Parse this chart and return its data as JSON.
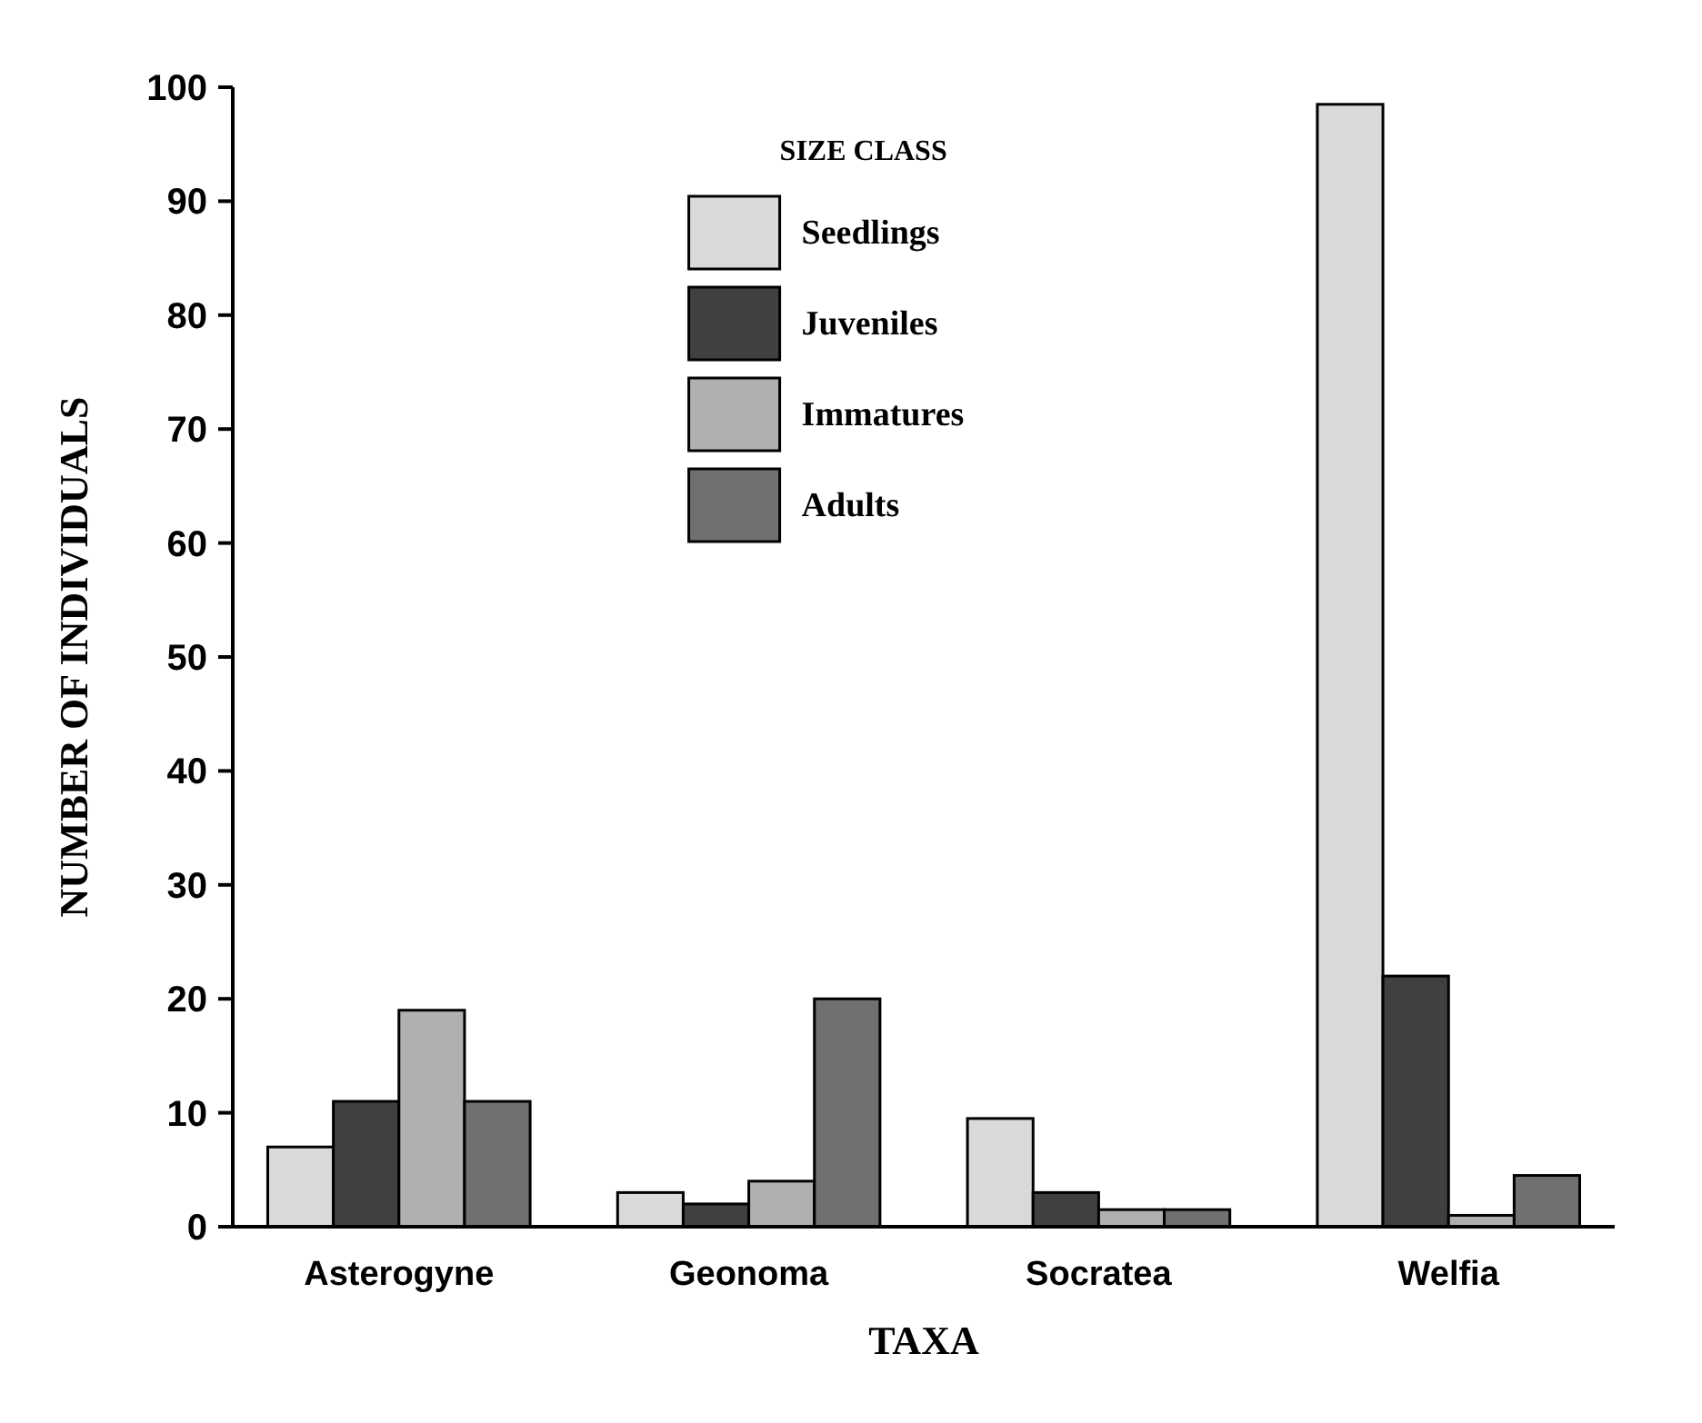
{
  "chart_data": {
    "type": "bar",
    "xlabel": "TAXA",
    "ylabel": "NUMBER OF INDIVIDUALS",
    "legend_title": "SIZE CLASS",
    "legend": "top",
    "categories": [
      "Asterogyne",
      "Geonoma",
      "Socratea",
      "Welfia"
    ],
    "series": [
      {
        "name": "Seedlings",
        "color": "#d9d9d9",
        "values": [
          7,
          3,
          9.5,
          98.5
        ]
      },
      {
        "name": "Juveniles",
        "color": "#404040",
        "values": [
          11,
          2,
          3,
          22
        ]
      },
      {
        "name": "Immatures",
        "color": "#b0b0b0",
        "values": [
          19,
          4,
          1.5,
          1
        ]
      },
      {
        "name": "Adults",
        "color": "#707070",
        "values": [
          11,
          20,
          1.5,
          4.5
        ]
      }
    ],
    "ylim": [
      0,
      100
    ],
    "yticks": [
      0,
      10,
      20,
      30,
      40,
      50,
      60,
      70,
      80,
      90,
      100
    ]
  }
}
